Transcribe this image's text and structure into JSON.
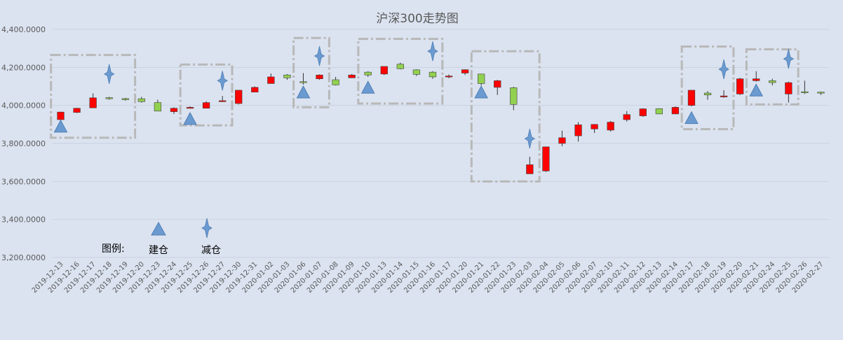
{
  "chart_data": {
    "type": "candlestick",
    "title": "沪深300走势图",
    "ylim": [
      3200,
      4400
    ],
    "yticks": [
      3200,
      3400,
      3600,
      3800,
      4000,
      4200,
      4400
    ],
    "ytick_labels": [
      "3,200.0000",
      "3,400.0000",
      "3,600.0000",
      "3,800.0000",
      "4,000.0000",
      "4,200.0000",
      "4,400.0000"
    ],
    "grid": true,
    "colors": {
      "up": "#ff0000",
      "down": "#92d050",
      "marker": "#6a9ad0",
      "frame": "#b8b8b8",
      "grid": "#c9d2df",
      "text": "#595959"
    },
    "categories": [
      "2019-12-13",
      "2019-12-16",
      "2019-12-17",
      "2019-12-18",
      "2019-12-19",
      "2019-12-20",
      "2019-12-23",
      "2019-12-24",
      "2019-12-25",
      "2019-12-26",
      "2019-12-27",
      "2019-12-30",
      "2019-12-31",
      "2020-01-02",
      "2020-01-03",
      "2020-01-06",
      "2020-01-07",
      "2020-01-08",
      "2020-01-09",
      "2020-01-10",
      "2020-01-13",
      "2020-01-14",
      "2020-01-15",
      "2020-01-16",
      "2020-01-17",
      "2020-01-20",
      "2020-01-21",
      "2020-01-22",
      "2020-01-23",
      "2020-02-03",
      "2020-02-04",
      "2020-02-05",
      "2020-02-06",
      "2020-02-07",
      "2020-02-10",
      "2020-02-11",
      "2020-02-12",
      "2020-02-13",
      "2020-02-14",
      "2020-02-17",
      "2020-02-18",
      "2020-02-19",
      "2020-02-20",
      "2020-02-21",
      "2020-02-24",
      "2020-02-25",
      "2020-02-26",
      "2020-02-27"
    ],
    "ohlc": [
      [
        3925,
        3967,
        3925,
        3965
      ],
      [
        3963,
        3987,
        3960,
        3985
      ],
      [
        3987,
        4063,
        3987,
        4040
      ],
      [
        4041,
        4045,
        4030,
        4035
      ],
      [
        4036,
        4040,
        4025,
        4030
      ],
      [
        4035,
        4045,
        4015,
        4020
      ],
      [
        4015,
        4030,
        3970,
        3970
      ],
      [
        3967,
        3990,
        3955,
        3985
      ],
      [
        3988,
        3995,
        3985,
        3990
      ],
      [
        3985,
        4022,
        3985,
        4015
      ],
      [
        4020,
        4050,
        4018,
        4025
      ],
      [
        4010,
        4080,
        4005,
        4080
      ],
      [
        4070,
        4100,
        4070,
        4095
      ],
      [
        4115,
        4168,
        4115,
        4150
      ],
      [
        4160,
        4165,
        4135,
        4145
      ],
      [
        4125,
        4170,
        4110,
        4120
      ],
      [
        4140,
        4163,
        4135,
        4160
      ],
      [
        4135,
        4150,
        4105,
        4108
      ],
      [
        4145,
        4165,
        4145,
        4160
      ],
      [
        4175,
        4180,
        4150,
        4160
      ],
      [
        4165,
        4205,
        4160,
        4205
      ],
      [
        4217,
        4225,
        4190,
        4193
      ],
      [
        4187,
        4190,
        4155,
        4163
      ],
      [
        4175,
        4180,
        4140,
        4150
      ],
      [
        4155,
        4163,
        4143,
        4155
      ],
      [
        4170,
        4190,
        4160,
        4188
      ],
      [
        4165,
        4165,
        4105,
        4115
      ],
      [
        4095,
        4135,
        4055,
        4130
      ],
      [
        4093,
        4098,
        3975,
        4005
      ],
      [
        3640,
        3730,
        3640,
        3688
      ],
      [
        3655,
        3782,
        3650,
        3782
      ],
      [
        3800,
        3867,
        3785,
        3830
      ],
      [
        3840,
        3912,
        3810,
        3898
      ],
      [
        3876,
        3902,
        3855,
        3900
      ],
      [
        3870,
        3918,
        3862,
        3912
      ],
      [
        3925,
        3970,
        3915,
        3952
      ],
      [
        3945,
        3985,
        3940,
        3982
      ],
      [
        3983,
        3985,
        3955,
        3955
      ],
      [
        3955,
        3995,
        3955,
        3990
      ],
      [
        4000,
        4080,
        3995,
        4080
      ],
      [
        4065,
        4075,
        4030,
        4055
      ],
      [
        4050,
        4080,
        4040,
        4050
      ],
      [
        4060,
        4145,
        4055,
        4140
      ],
      [
        4130,
        4180,
        4125,
        4140
      ],
      [
        4130,
        4140,
        4105,
        4120
      ],
      [
        4060,
        4125,
        4015,
        4120
      ],
      [
        4072,
        4130,
        4060,
        4068
      ],
      [
        4070,
        4072,
        4055,
        4065
      ]
    ],
    "markers": {
      "build": [
        {
          "x": "2019-12-13",
          "y": 3885
        },
        {
          "x": "2019-12-25",
          "y": 3925
        },
        {
          "x": "2020-01-06",
          "y": 4065
        },
        {
          "x": "2020-01-10",
          "y": 4090
        },
        {
          "x": "2020-01-21",
          "y": 4065
        },
        {
          "x": "2020-02-17",
          "y": 3930
        },
        {
          "x": "2020-02-21",
          "y": 4075
        }
      ],
      "reduce": [
        {
          "x": "2019-12-18",
          "y": 4165
        },
        {
          "x": "2019-12-27",
          "y": 4130
        },
        {
          "x": "2020-01-07",
          "y": 4260
        },
        {
          "x": "2020-01-16",
          "y": 4285
        },
        {
          "x": "2020-02-03",
          "y": 3825
        },
        {
          "x": "2020-02-19",
          "y": 4190
        },
        {
          "x": "2020-02-25",
          "y": 4245
        }
      ]
    },
    "boxes": [
      {
        "from": "2019-12-13",
        "to": "2019-12-19",
        "ymin": 3830,
        "ymax": 4265
      },
      {
        "from": "2019-12-25",
        "to": "2019-12-27",
        "ymin": 3895,
        "ymax": 4215
      },
      {
        "from": "2020-01-06",
        "to": "2020-01-07",
        "ymin": 3990,
        "ymax": 4355
      },
      {
        "from": "2020-01-10",
        "to": "2020-01-16",
        "ymin": 4010,
        "ymax": 4350
      },
      {
        "from": "2020-01-21",
        "to": "2020-02-03",
        "ymin": 3600,
        "ymax": 4285
      },
      {
        "from": "2020-02-17",
        "to": "2020-02-19",
        "ymin": 3875,
        "ymax": 4310
      },
      {
        "from": "2020-02-21",
        "to": "2020-02-25",
        "ymin": 4005,
        "ymax": 4295
      }
    ],
    "legend": {
      "title": "图例:",
      "items": [
        {
          "label": "建仓",
          "marker": "triangle"
        },
        {
          "label": "减仓",
          "marker": "star"
        }
      ]
    }
  }
}
